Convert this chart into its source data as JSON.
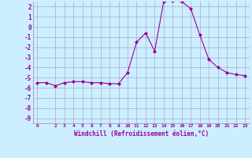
{
  "x": [
    0,
    1,
    2,
    3,
    4,
    5,
    6,
    7,
    8,
    9,
    10,
    11,
    12,
    13,
    14,
    15,
    16,
    17,
    18,
    19,
    20,
    21,
    22,
    23
  ],
  "y": [
    -5.5,
    -5.5,
    -5.8,
    -5.5,
    -5.4,
    -5.4,
    -5.5,
    -5.5,
    -5.6,
    -5.6,
    -4.5,
    -1.5,
    -0.6,
    -2.4,
    2.5,
    2.6,
    2.5,
    1.8,
    -0.8,
    -3.2,
    -4.0,
    -4.5,
    -4.7,
    -4.8
  ],
  "line_color": "#990099",
  "marker": "D",
  "marker_size": 2,
  "bg_color": "#cceeff",
  "grid_color": "#aaaacc",
  "xlabel": "Windchill (Refroidissement éolien,°C)",
  "xlabel_color": "#990099",
  "tick_color": "#990099",
  "ylim": [
    -9.5,
    2.5
  ],
  "xlim": [
    -0.5,
    23.5
  ],
  "yticks": [
    2,
    1,
    0,
    -1,
    -2,
    -3,
    -4,
    -5,
    -6,
    -7,
    -8,
    -9
  ],
  "xticks": [
    0,
    2,
    3,
    4,
    5,
    6,
    7,
    8,
    9,
    10,
    11,
    12,
    13,
    14,
    15,
    16,
    17,
    18,
    19,
    20,
    21,
    22,
    23
  ]
}
